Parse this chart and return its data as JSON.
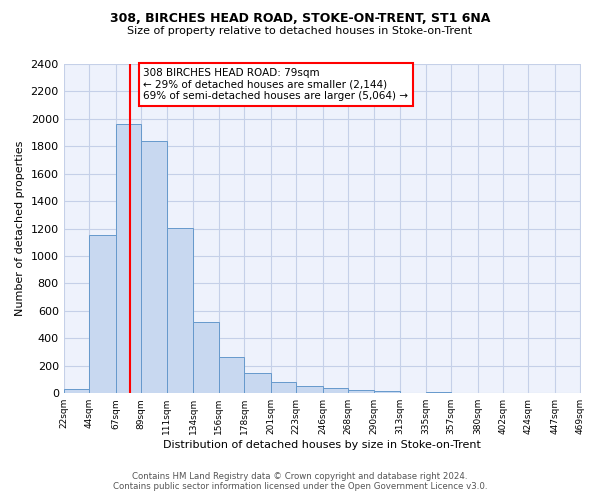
{
  "title": "308, BIRCHES HEAD ROAD, STOKE-ON-TRENT, ST1 6NA",
  "subtitle": "Size of property relative to detached houses in Stoke-on-Trent",
  "xlabel": "Distribution of detached houses by size in Stoke-on-Trent",
  "ylabel": "Number of detached properties",
  "bin_edges": [
    22,
    44,
    67,
    89,
    111,
    134,
    156,
    178,
    201,
    223,
    246,
    268,
    290,
    313,
    335,
    357,
    380,
    402,
    424,
    447,
    469
  ],
  "bin_labels": [
    "22sqm",
    "44sqm",
    "67sqm",
    "89sqm",
    "111sqm",
    "134sqm",
    "156sqm",
    "178sqm",
    "201sqm",
    "223sqm",
    "246sqm",
    "268sqm",
    "290sqm",
    "313sqm",
    "335sqm",
    "357sqm",
    "380sqm",
    "402sqm",
    "424sqm",
    "447sqm",
    "469sqm"
  ],
  "bar_heights": [
    30,
    1155,
    1960,
    1840,
    1205,
    520,
    265,
    150,
    80,
    50,
    35,
    25,
    15,
    5,
    10,
    0,
    0,
    0,
    0,
    5
  ],
  "bar_color": "#c8d8f0",
  "bar_edge_color": "#6699cc",
  "vline_x": 79,
  "vline_color": "red",
  "ylim": [
    0,
    2400
  ],
  "yticks": [
    0,
    200,
    400,
    600,
    800,
    1000,
    1200,
    1400,
    1600,
    1800,
    2000,
    2200,
    2400
  ],
  "annotation_line1": "308 BIRCHES HEAD ROAD: 79sqm",
  "annotation_line2": "← 29% of detached houses are smaller (2,144)",
  "annotation_line3": "69% of semi-detached houses are larger (5,064) →",
  "annotation_box_color": "white",
  "annotation_box_edge_color": "red",
  "footer_line1": "Contains HM Land Registry data © Crown copyright and database right 2024.",
  "footer_line2": "Contains public sector information licensed under the Open Government Licence v3.0.",
  "background_color": "#eef2fc",
  "grid_color": "#c5d0e8"
}
